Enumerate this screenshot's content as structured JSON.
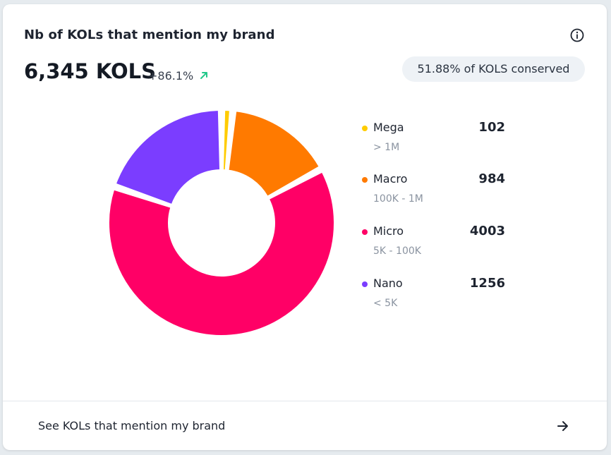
{
  "card": {
    "title": "Nb of KOLs that mention my brand",
    "total": "6,345 KOLS",
    "change": "+86.1%",
    "conserved_badge": "51.88% of KOLS conserved",
    "footer_link": "See KOLs that mention my brand"
  },
  "icons": {
    "info": "info-icon",
    "trend": "arrow-up-right-icon",
    "footer": "arrow-right-icon"
  },
  "colors": {
    "trend_up": "#22c88a"
  },
  "chart_data": {
    "type": "pie",
    "variant": "donut",
    "categories": [
      "Mega",
      "Macro",
      "Micro",
      "Nano"
    ],
    "ranges": [
      "> 1M",
      "100K - 1M",
      "5K - 100K",
      "< 5K"
    ],
    "values": [
      102,
      984,
      4003,
      1256
    ],
    "display_values": [
      "102",
      "984",
      "4003",
      "1256"
    ],
    "colors": [
      "#ffcc00",
      "#ff7a00",
      "#ff0066",
      "#7b3dff"
    ],
    "legend_position": "right"
  }
}
